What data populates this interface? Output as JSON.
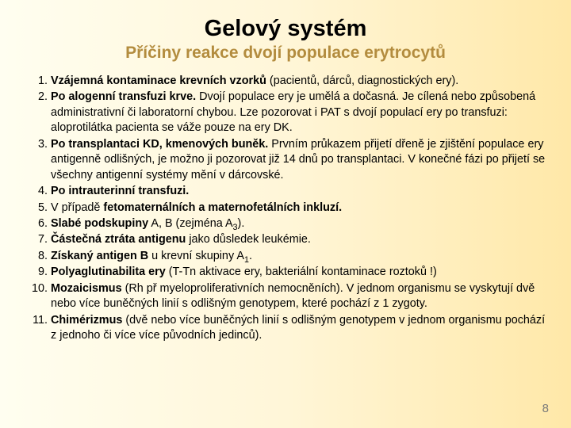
{
  "title": "Gelový systém",
  "subtitle": "Příčiny reakce dvojí populace erytrocytů",
  "page_number": "8",
  "colors": {
    "subtitle": "#b38c3e",
    "pagenum": "#7a7a7a",
    "bg_start": "#fffef0",
    "bg_end": "#ffe8a8"
  },
  "items": [
    {
      "num": "1.",
      "bold": "Vzájemná kontaminace krevních vzorků",
      "rest": " (pacientů, dárců, diagnostických ery)."
    },
    {
      "num": "2.",
      "bold": "Po alogenní transfuzi krve.",
      "rest": " Dvojí populace ery je umělá a dočasná. Je cílená nebo způsobená administrativní či laboratorní chybou. Lze pozorovat i PAT s dvojí populací ery po transfuzi: aloprotilátka pacienta se váže pouze na ery DK."
    },
    {
      "num": "3.",
      "bold": "Po transplantaci KD, kmenových buněk.",
      "rest": " Prvním průkazem přijetí dřeně je zjištění populace ery antigenně odlišných, je možno ji pozorovat již 14 dnů po transplantaci. V konečné fázi po přijetí se všechny antigenní systémy mění v dárcovské."
    },
    {
      "num": "4.",
      "bold": "Po intrauterinní transfuzi.",
      "rest": ""
    },
    {
      "num": "5.",
      "bold_pre": "V případě ",
      "bold": "fetomaternálních a maternofetálních inkluzí.",
      "rest": ""
    },
    {
      "num": "6.",
      "bold": "Slabé podskupiny",
      "rest_html": " A, B (zejména A<sub>3</sub>)."
    },
    {
      "num": "7.",
      "bold": "Částečná ztráta antigenu",
      "rest": " jako důsledek leukémie."
    },
    {
      "num": "8.",
      "bold": "Získaný antigen B",
      "rest_html": " u krevní skupiny A<sub>1</sub>."
    },
    {
      "num": "9.",
      "bold": "Polyaglutinabilita ery",
      "rest": " (T-Tn aktivace ery, bakteriální kontaminace roztoků !)"
    },
    {
      "num": "10.",
      "bold": "Mozaicismus",
      "rest": " (Rh př myeloproliferativních nemocněních). V jednom organismu se vyskytují dvě nebo více buněčných linií s odlišným genotypem, které pochází z 1 zygoty."
    },
    {
      "num": "11.",
      "bold": "Chimérizmus",
      "rest": " (dvě nebo více buněčných linií s odlišným genotypem v jednom organismu pochází z jednoho či více více původních jedinců)."
    }
  ]
}
